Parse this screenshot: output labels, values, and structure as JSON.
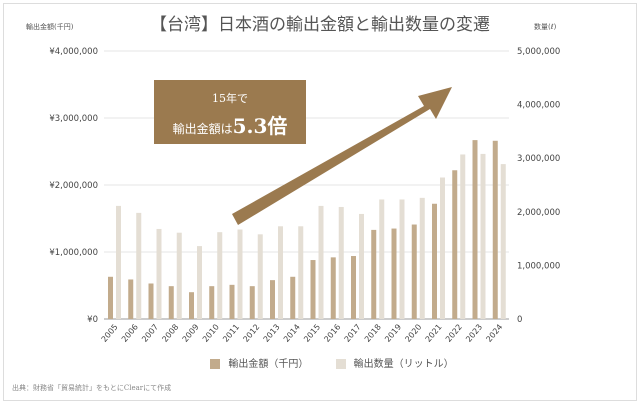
{
  "chart_data": {
    "type": "bar",
    "title": "【台湾】日本酒の輸出金額と輸出数量の変遷",
    "ylabel_left": "輸出金額(千円)",
    "ylabel_right": "数量(ℓ)",
    "categories": [
      "2005",
      "2006",
      "2007",
      "2008",
      "2009",
      "2010",
      "2011",
      "2012",
      "2013",
      "2014",
      "2015",
      "2016",
      "2017",
      "2018",
      "2019",
      "2020",
      "2021",
      "2022",
      "2023",
      "2024"
    ],
    "series": [
      {
        "name": "輸出金額（千円）",
        "axis": "left",
        "color": "#c2ab8c",
        "values": [
          630000,
          590000,
          530000,
          490000,
          400000,
          490000,
          510000,
          490000,
          580000,
          630000,
          880000,
          920000,
          940000,
          1330000,
          1350000,
          1410000,
          1720000,
          2220000,
          2670000,
          2660000
        ]
      },
      {
        "name": "輸出数量（リットル）",
        "axis": "right",
        "color": "#e4ded4",
        "values": [
          2110000,
          1980000,
          1680000,
          1610000,
          1360000,
          1620000,
          1670000,
          1580000,
          1730000,
          1730000,
          2110000,
          2090000,
          1960000,
          2230000,
          2230000,
          2260000,
          2640000,
          3070000,
          3080000,
          2890000
        ]
      }
    ],
    "ylim_left": [
      0,
      4000000
    ],
    "ylim_right": [
      0,
      5000000
    ],
    "left_ticks": [
      "¥0",
      "¥1,000,000",
      "¥2,000,000",
      "¥3,000,000",
      "¥4,000,000"
    ],
    "right_ticks": [
      "0",
      "1,000,000",
      "2,000,000",
      "3,000,000",
      "4,000,000",
      "5,000,000"
    ],
    "grid": true,
    "legend_position": "bottom",
    "annotation": {
      "line1": "15年で",
      "line2_prefix": "輸出金額は",
      "line2_value": "5.3倍"
    }
  },
  "source": "出典：財務省「貿易統計」をもとにClearにて作成"
}
